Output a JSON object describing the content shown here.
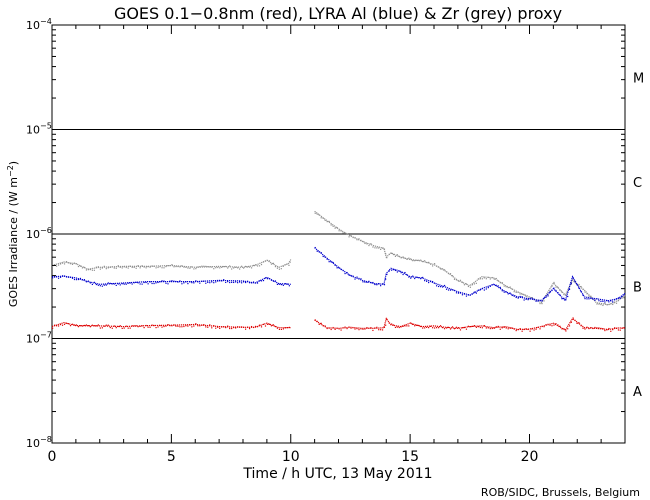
{
  "chart_data": {
    "type": "scatter",
    "title": "GOES 0.1−0.8nm (red), LYRA Al (blue) & Zr (grey) proxy",
    "xlabel": "Time / h UTC, 13 May 2011",
    "ylabel_main": "GOES Irradiance / (W m",
    "ylabel_exp": "−2",
    "ylabel_close": ")",
    "xlim": [
      0,
      24
    ],
    "ylim": [
      1e-08,
      0.0001
    ],
    "yscale": "log",
    "x_ticks": [
      {
        "v": 0,
        "label": "0"
      },
      {
        "v": 5,
        "label": "5"
      },
      {
        "v": 10,
        "label": "10"
      },
      {
        "v": 15,
        "label": "15"
      },
      {
        "v": 20,
        "label": "20"
      }
    ],
    "y_ticks": [
      {
        "v": 1e-08,
        "base": "10",
        "exp": "−8"
      },
      {
        "v": 1e-07,
        "base": "10",
        "exp": "−7"
      },
      {
        "v": 1e-06,
        "base": "10",
        "exp": "−6"
      },
      {
        "v": 1e-05,
        "base": "10",
        "exp": "−5"
      },
      {
        "v": 0.0001,
        "base": "10",
        "exp": "−4"
      }
    ],
    "class_lines": [
      1e-07,
      1e-06,
      1e-05
    ],
    "flare_classes": [
      {
        "label": "A",
        "v": 3.16e-08
      },
      {
        "label": "B",
        "v": 3.16e-07
      },
      {
        "label": "C",
        "v": 3.16e-06
      },
      {
        "label": "M",
        "v": 3.16e-05
      }
    ],
    "series": [
      {
        "name": "LYRA Zr (grey) proxy",
        "color": "#909090",
        "segments": [
          [
            [
              0.0,
              5e-07
            ],
            [
              0.5,
              5.4e-07
            ],
            [
              1.0,
              5.2e-07
            ],
            [
              1.5,
              4.6e-07
            ],
            [
              2.0,
              4.8e-07
            ],
            [
              3.0,
              4.9e-07
            ],
            [
              4.0,
              4.9e-07
            ],
            [
              5.0,
              5e-07
            ],
            [
              6.0,
              4.8e-07
            ],
            [
              7.0,
              4.9e-07
            ],
            [
              8.0,
              4.8e-07
            ],
            [
              8.5,
              5e-07
            ],
            [
              9.0,
              5.6e-07
            ],
            [
              9.5,
              4.8e-07
            ],
            [
              9.9,
              5.2e-07
            ],
            [
              10.0,
              5.7e-07
            ]
          ],
          [
            [
              11.0,
              1.65e-06
            ],
            [
              11.5,
              1.35e-06
            ],
            [
              12.0,
              1.12e-06
            ],
            [
              12.5,
              9.6e-07
            ],
            [
              13.0,
              8.5e-07
            ],
            [
              13.5,
              7.7e-07
            ],
            [
              13.9,
              7.3e-07
            ],
            [
              14.0,
              6e-07
            ],
            [
              14.2,
              6.6e-07
            ],
            [
              14.6,
              6e-07
            ],
            [
              15.0,
              5.7e-07
            ],
            [
              15.5,
              5.5e-07
            ],
            [
              16.0,
              5.1e-07
            ],
            [
              16.5,
              4.4e-07
            ],
            [
              17.0,
              3.6e-07
            ],
            [
              17.5,
              3.2e-07
            ],
            [
              18.0,
              3.9e-07
            ],
            [
              18.5,
              3.8e-07
            ],
            [
              19.0,
              3.2e-07
            ],
            [
              19.5,
              2.8e-07
            ],
            [
              20.0,
              2.5e-07
            ],
            [
              20.5,
              2.2e-07
            ],
            [
              21.0,
              3.4e-07
            ],
            [
              21.5,
              2.6e-07
            ],
            [
              21.8,
              3.6e-07
            ],
            [
              22.3,
              2.9e-07
            ],
            [
              22.8,
              2.2e-07
            ],
            [
              23.3,
              2.1e-07
            ],
            [
              23.7,
              2.3e-07
            ],
            [
              24.0,
              2.6e-07
            ]
          ]
        ]
      },
      {
        "name": "LYRA Al (blue) proxy",
        "color": "#0000cc",
        "segments": [
          [
            [
              0.0,
              3.9e-07
            ],
            [
              0.5,
              3.95e-07
            ],
            [
              1.0,
              3.8e-07
            ],
            [
              1.5,
              3.5e-07
            ],
            [
              2.0,
              3.3e-07
            ],
            [
              3.0,
              3.4e-07
            ],
            [
              4.0,
              3.5e-07
            ],
            [
              5.0,
              3.5e-07
            ],
            [
              6.0,
              3.5e-07
            ],
            [
              7.0,
              3.6e-07
            ],
            [
              8.0,
              3.55e-07
            ],
            [
              8.5,
              3.4e-07
            ],
            [
              9.0,
              3.85e-07
            ],
            [
              9.5,
              3.35e-07
            ],
            [
              10.0,
              3.3e-07
            ]
          ],
          [
            [
              11.0,
              7.4e-07
            ],
            [
              11.5,
              5.9e-07
            ],
            [
              12.0,
              4.8e-07
            ],
            [
              12.5,
              4e-07
            ],
            [
              13.0,
              3.6e-07
            ],
            [
              13.5,
              3.35e-07
            ],
            [
              13.9,
              3.3e-07
            ],
            [
              14.0,
              4.2e-07
            ],
            [
              14.2,
              4.7e-07
            ],
            [
              14.6,
              4.4e-07
            ],
            [
              15.0,
              3.9e-07
            ],
            [
              15.5,
              3.8e-07
            ],
            [
              16.0,
              3.4e-07
            ],
            [
              16.5,
              3.1e-07
            ],
            [
              17.0,
              2.8e-07
            ],
            [
              17.5,
              2.6e-07
            ],
            [
              18.0,
              3e-07
            ],
            [
              18.5,
              3.3e-07
            ],
            [
              19.0,
              2.8e-07
            ],
            [
              19.5,
              2.5e-07
            ],
            [
              20.0,
              2.4e-07
            ],
            [
              20.5,
              2.3e-07
            ],
            [
              21.0,
              3e-07
            ],
            [
              21.5,
              2.3e-07
            ],
            [
              21.8,
              3.9e-07
            ],
            [
              22.3,
              2.5e-07
            ],
            [
              22.8,
              2.4e-07
            ],
            [
              23.3,
              2.3e-07
            ],
            [
              23.7,
              2.4e-07
            ],
            [
              24.0,
              2.7e-07
            ]
          ]
        ]
      },
      {
        "name": "GOES 0.1−0.8nm (red)",
        "color": "#dd0000",
        "segments": [
          [
            [
              0.0,
              1.3e-07
            ],
            [
              0.5,
              1.42e-07
            ],
            [
              1.0,
              1.33e-07
            ],
            [
              2.0,
              1.32e-07
            ],
            [
              3.0,
              1.3e-07
            ],
            [
              4.0,
              1.33e-07
            ],
            [
              5.0,
              1.34e-07
            ],
            [
              6.0,
              1.36e-07
            ],
            [
              7.0,
              1.3e-07
            ],
            [
              8.0,
              1.28e-07
            ],
            [
              8.5,
              1.28e-07
            ],
            [
              9.0,
              1.4e-07
            ],
            [
              9.5,
              1.27e-07
            ],
            [
              10.0,
              1.27e-07
            ]
          ],
          [
            [
              11.0,
              1.5e-07
            ],
            [
              11.5,
              1.27e-07
            ],
            [
              12.0,
              1.25e-07
            ],
            [
              12.5,
              1.28e-07
            ],
            [
              13.0,
              1.25e-07
            ],
            [
              13.5,
              1.25e-07
            ],
            [
              13.9,
              1.27e-07
            ],
            [
              14.0,
              1.55e-07
            ],
            [
              14.2,
              1.35e-07
            ],
            [
              14.6,
              1.3e-07
            ],
            [
              15.0,
              1.4e-07
            ],
            [
              15.5,
              1.3e-07
            ],
            [
              16.0,
              1.32e-07
            ],
            [
              16.5,
              1.28e-07
            ],
            [
              17.0,
              1.25e-07
            ],
            [
              17.5,
              1.3e-07
            ],
            [
              18.0,
              1.32e-07
            ],
            [
              18.5,
              1.27e-07
            ],
            [
              19.0,
              1.3e-07
            ],
            [
              19.5,
              1.22e-07
            ],
            [
              20.0,
              1.23e-07
            ],
            [
              20.5,
              1.3e-07
            ],
            [
              21.0,
              1.4e-07
            ],
            [
              21.5,
              1.2e-07
            ],
            [
              21.8,
              1.55e-07
            ],
            [
              22.3,
              1.27e-07
            ],
            [
              22.8,
              1.25e-07
            ],
            [
              23.3,
              1.22e-07
            ],
            [
              23.7,
              1.26e-07
            ],
            [
              24.0,
              1.26e-07
            ]
          ]
        ]
      }
    ],
    "credit": "ROB/SIDC, Brussels, Belgium"
  }
}
